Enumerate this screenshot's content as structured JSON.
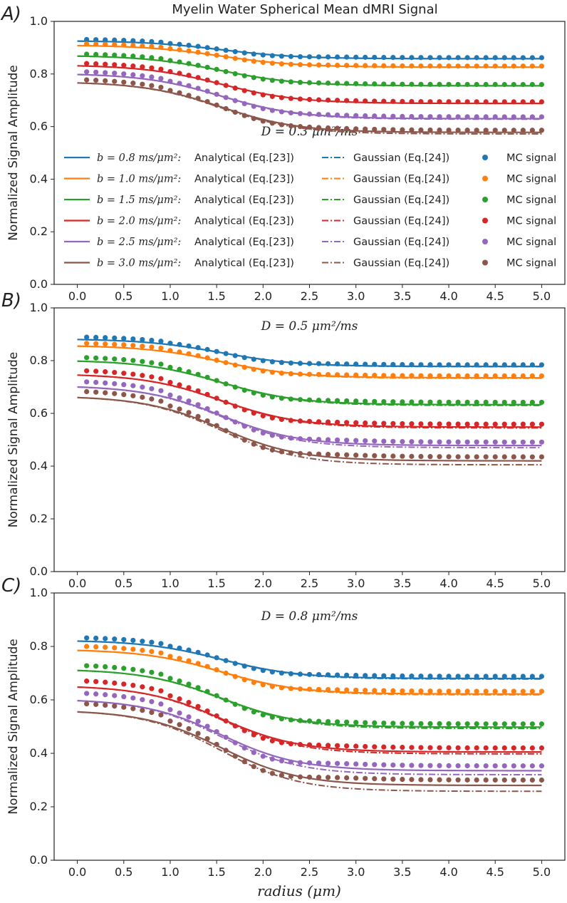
{
  "figure_title": "Myelin Water Spherical Mean dMRI Signal",
  "xlabel": "radius (μm)",
  "ylabel": "Normalized Signal Amplitude",
  "colors": {
    "b0.8": "#1f77b4",
    "b1.0": "#ff7f0e",
    "b1.5": "#2ca02c",
    "b2.0": "#d62728",
    "b2.5": "#9467bd",
    "b3.0": "#8c564b",
    "axis": "#222222"
  },
  "legend": {
    "entries": [
      {
        "b": "b = 0.8 ms/μm²:",
        "analytical": "Analytical (Eq.[23])",
        "gaussian": "Gaussian (Eq.[24])",
        "mc": "MC signal"
      },
      {
        "b": "b = 1.0 ms/μm²:",
        "analytical": "Analytical (Eq.[23])",
        "gaussian": "Gaussian (Eq.[24])",
        "mc": "MC signal"
      },
      {
        "b": "b = 1.5 ms/μm²:",
        "analytical": "Analytical (Eq.[23])",
        "gaussian": "Gaussian (Eq.[24])",
        "mc": "MC signal"
      },
      {
        "b": "b = 2.0 ms/μm²:",
        "analytical": "Analytical (Eq.[23])",
        "gaussian": "Gaussian (Eq.[24])",
        "mc": "MC signal"
      },
      {
        "b": "b = 2.5 ms/μm²:",
        "analytical": "Analytical (Eq.[23])",
        "gaussian": "Gaussian (Eq.[24])",
        "mc": "MC signal"
      },
      {
        "b": "b = 3.0 ms/μm²:",
        "analytical": "Analytical (Eq.[23])",
        "gaussian": "Gaussian (Eq.[24])",
        "mc": "MC signal"
      }
    ]
  },
  "chart_data": [
    {
      "type": "line",
      "panel": "A)",
      "annotation": "D = 0.3 μm²/ms",
      "xlim": [
        -0.25,
        5.25
      ],
      "ylim": [
        0,
        1.0
      ],
      "xticks": [
        "0.0",
        "0.5",
        "1.0",
        "1.5",
        "2.0",
        "2.5",
        "3.0",
        "3.5",
        "4.0",
        "4.5",
        "5.0"
      ],
      "yticks": [
        "0.0",
        "0.2",
        "0.4",
        "0.6",
        "0.8",
        "1.0"
      ],
      "series": [
        {
          "name": "b = 0.8",
          "start": 0.925,
          "end": 0.858,
          "gauss_end": 0.858,
          "mc_offset": 0.004
        },
        {
          "name": "b = 1.0",
          "start": 0.908,
          "end": 0.826,
          "gauss_end": 0.826,
          "mc_offset": 0.004
        },
        {
          "name": "b = 1.5",
          "start": 0.868,
          "end": 0.755,
          "gauss_end": 0.755,
          "mc_offset": 0.005
        },
        {
          "name": "b = 2.0",
          "start": 0.831,
          "end": 0.688,
          "gauss_end": 0.688,
          "mc_offset": 0.006
        },
        {
          "name": "b = 2.5",
          "start": 0.798,
          "end": 0.63,
          "gauss_end": 0.628,
          "mc_offset": 0.007
        },
        {
          "name": "b = 3.0",
          "start": 0.766,
          "end": 0.578,
          "gauss_end": 0.572,
          "mc_offset": 0.008
        }
      ]
    },
    {
      "type": "line",
      "panel": "B)",
      "annotation": "D = 0.5 μm²/ms",
      "xlim": [
        -0.25,
        5.25
      ],
      "ylim": [
        0,
        1.0
      ],
      "xticks": [
        "0.0",
        "0.5",
        "1.0",
        "1.5",
        "2.0",
        "2.5",
        "3.0",
        "3.5",
        "4.0",
        "4.5",
        "5.0"
      ],
      "yticks": [
        "0.0",
        "0.2",
        "0.4",
        "0.6",
        "0.8",
        "1.0"
      ],
      "series": [
        {
          "name": "b = 0.8",
          "start": 0.88,
          "end": 0.778,
          "gauss_end": 0.777,
          "mc_offset": 0.006
        },
        {
          "name": "b = 1.0",
          "start": 0.855,
          "end": 0.735,
          "gauss_end": 0.733,
          "mc_offset": 0.007
        },
        {
          "name": "b = 1.5",
          "start": 0.798,
          "end": 0.633,
          "gauss_end": 0.63,
          "mc_offset": 0.009
        },
        {
          "name": "b = 2.0",
          "start": 0.745,
          "end": 0.548,
          "gauss_end": 0.545,
          "mc_offset": 0.011
        },
        {
          "name": "b = 2.5",
          "start": 0.7,
          "end": 0.478,
          "gauss_end": 0.47,
          "mc_offset": 0.013
        },
        {
          "name": "b = 3.0",
          "start": 0.66,
          "end": 0.42,
          "gauss_end": 0.405,
          "mc_offset": 0.015
        }
      ]
    },
    {
      "type": "line",
      "panel": "C)",
      "annotation": "D = 0.8 μm²/ms",
      "xlim": [
        -0.25,
        5.25
      ],
      "ylim": [
        0,
        1.0
      ],
      "xticks": [
        "0.0",
        "0.5",
        "1.0",
        "1.5",
        "2.0",
        "2.5",
        "3.0",
        "3.5",
        "4.0",
        "4.5",
        "5.0"
      ],
      "yticks": [
        "0.0",
        "0.2",
        "0.4",
        "0.6",
        "0.8",
        "1.0"
      ],
      "series": [
        {
          "name": "b = 0.8",
          "start": 0.82,
          "end": 0.68,
          "gauss_end": 0.678,
          "mc_offset": 0.008
        },
        {
          "name": "b = 1.0",
          "start": 0.785,
          "end": 0.622,
          "gauss_end": 0.619,
          "mc_offset": 0.01
        },
        {
          "name": "b = 1.5",
          "start": 0.71,
          "end": 0.498,
          "gauss_end": 0.493,
          "mc_offset": 0.012
        },
        {
          "name": "b = 2.0",
          "start": 0.648,
          "end": 0.405,
          "gauss_end": 0.398,
          "mc_offset": 0.015
        },
        {
          "name": "b = 2.5",
          "start": 0.597,
          "end": 0.335,
          "gauss_end": 0.32,
          "mc_offset": 0.018
        },
        {
          "name": "b = 3.0",
          "start": 0.555,
          "end": 0.28,
          "gauss_end": 0.258,
          "mc_offset": 0.02
        }
      ]
    }
  ]
}
